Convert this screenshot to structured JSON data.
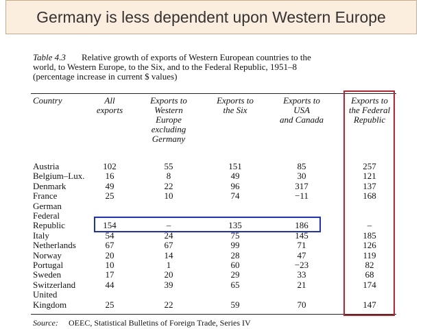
{
  "header": {
    "title": "Germany is less dependent upon Western Europe"
  },
  "table": {
    "caption": {
      "label": "Table 4.3",
      "lines": [
        "Relative growth of exports of Western European countries to the",
        "world, to Western Europe, to the Six, and to the Federal Republic, 1951–8",
        "(percentage increase in current $ values)"
      ]
    },
    "columns": [
      {
        "lines": [
          "Country"
        ]
      },
      {
        "lines": [
          "All",
          "exports"
        ]
      },
      {
        "lines": [
          "Exports to",
          "Western",
          "Europe",
          "excluding",
          "Germany"
        ]
      },
      {
        "lines": [
          "Exports to",
          "the Six"
        ]
      },
      {
        "lines": [
          "Exports to",
          "USA",
          "and Canada"
        ]
      },
      {
        "lines": [
          "Exports to",
          "the Federal",
          "Republic"
        ]
      }
    ],
    "rows": [
      {
        "country": [
          "Austria"
        ],
        "cells": [
          "102",
          "55",
          "151",
          "85",
          "257"
        ]
      },
      {
        "country": [
          "Belgium–Lux."
        ],
        "cells": [
          "16",
          "8",
          "49",
          "30",
          "121"
        ]
      },
      {
        "country": [
          "Denmark"
        ],
        "cells": [
          "49",
          "22",
          "96",
          "317",
          "137"
        ]
      },
      {
        "country": [
          "France"
        ],
        "cells": [
          "25",
          "10",
          "74",
          "−11",
          "168"
        ]
      },
      {
        "country": [
          "German",
          "Federal",
          "Republic"
        ],
        "cells": [
          "154",
          "–",
          "135",
          "186",
          "–"
        ]
      },
      {
        "country": [
          "Italy"
        ],
        "cells": [
          "54",
          "24",
          "75",
          "145",
          "185"
        ]
      },
      {
        "country": [
          "Netherlands"
        ],
        "cells": [
          "67",
          "67",
          "99",
          "71",
          "126"
        ]
      },
      {
        "country": [
          "Norway"
        ],
        "cells": [
          "20",
          "14",
          "28",
          "47",
          "119"
        ]
      },
      {
        "country": [
          "Portugal"
        ],
        "cells": [
          "10",
          "1",
          "60",
          "−23",
          "82"
        ]
      },
      {
        "country": [
          "Sweden"
        ],
        "cells": [
          "17",
          "20",
          "29",
          "33",
          "68"
        ]
      },
      {
        "country": [
          "Switzerland"
        ],
        "cells": [
          "44",
          "39",
          "65",
          "21",
          "174"
        ]
      },
      {
        "country": [
          "United",
          "Kingdom"
        ],
        "cells": [
          "25",
          "22",
          "59",
          "70",
          "147"
        ]
      }
    ],
    "source": {
      "label": "Source:",
      "text": "OEEC, Statistical Bulletins of Foreign Trade, Series IV"
    }
  }
}
